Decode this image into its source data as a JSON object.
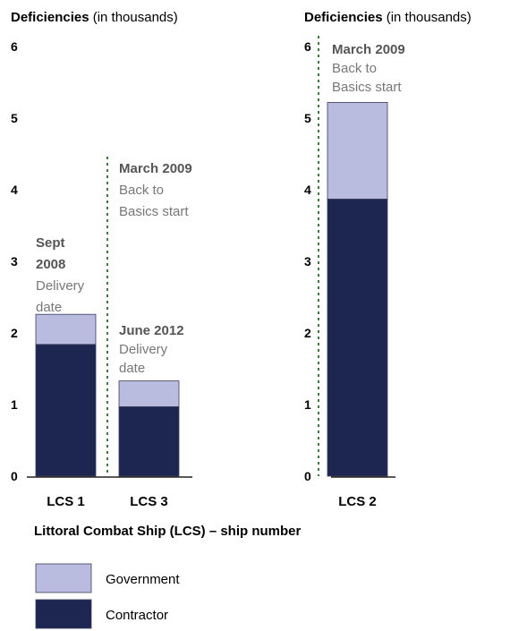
{
  "chart_data": [
    {
      "type": "bar",
      "stacked": true,
      "title_bold": "Deficiencies",
      "title_rest": " (in thousands)",
      "yticks": [
        "0",
        "1",
        "2",
        "3",
        "4",
        "5",
        "6"
      ],
      "ylim": [
        0,
        6
      ],
      "categories": [
        "LCS 1",
        "LCS 3"
      ],
      "series": [
        {
          "name": "Contractor",
          "values": [
            1.84,
            0.97
          ]
        },
        {
          "name": "Government",
          "values": [
            0.42,
            0.36
          ]
        }
      ],
      "annotations": [
        {
          "lines_bold": [
            "Sept",
            "2008"
          ],
          "lines": [
            "Delivery",
            "date"
          ]
        },
        {
          "lines_bold": [
            "March 2009"
          ],
          "lines": [
            "Back to",
            "Basics start"
          ]
        },
        {
          "lines_bold": [
            "June 2012"
          ],
          "lines": [
            "Delivery",
            "date"
          ]
        }
      ]
    },
    {
      "type": "bar",
      "stacked": true,
      "title_bold": "Deficiencies",
      "title_rest": " (in thousands)",
      "yticks": [
        "0",
        "1",
        "2",
        "3",
        "4",
        "5",
        "6"
      ],
      "ylim": [
        0,
        6
      ],
      "categories": [
        "LCS 2"
      ],
      "series": [
        {
          "name": "Contractor",
          "values": [
            3.87
          ]
        },
        {
          "name": "Government",
          "values": [
            1.35
          ]
        }
      ],
      "annotations": [
        {
          "lines_bold": [
            "March 2009"
          ],
          "lines": [
            "Back to",
            "Basics start"
          ]
        }
      ]
    }
  ],
  "xlabel": "Littoral Combat Ship (LCS) – ship number",
  "legend": [
    {
      "label": "Government",
      "color": "#b9bbdf"
    },
    {
      "label": "Contractor",
      "color": "#1c2651"
    }
  ],
  "colors": {
    "government": "#b9bbdf",
    "contractor": "#1c2651",
    "divider": "#3f7a3f"
  }
}
